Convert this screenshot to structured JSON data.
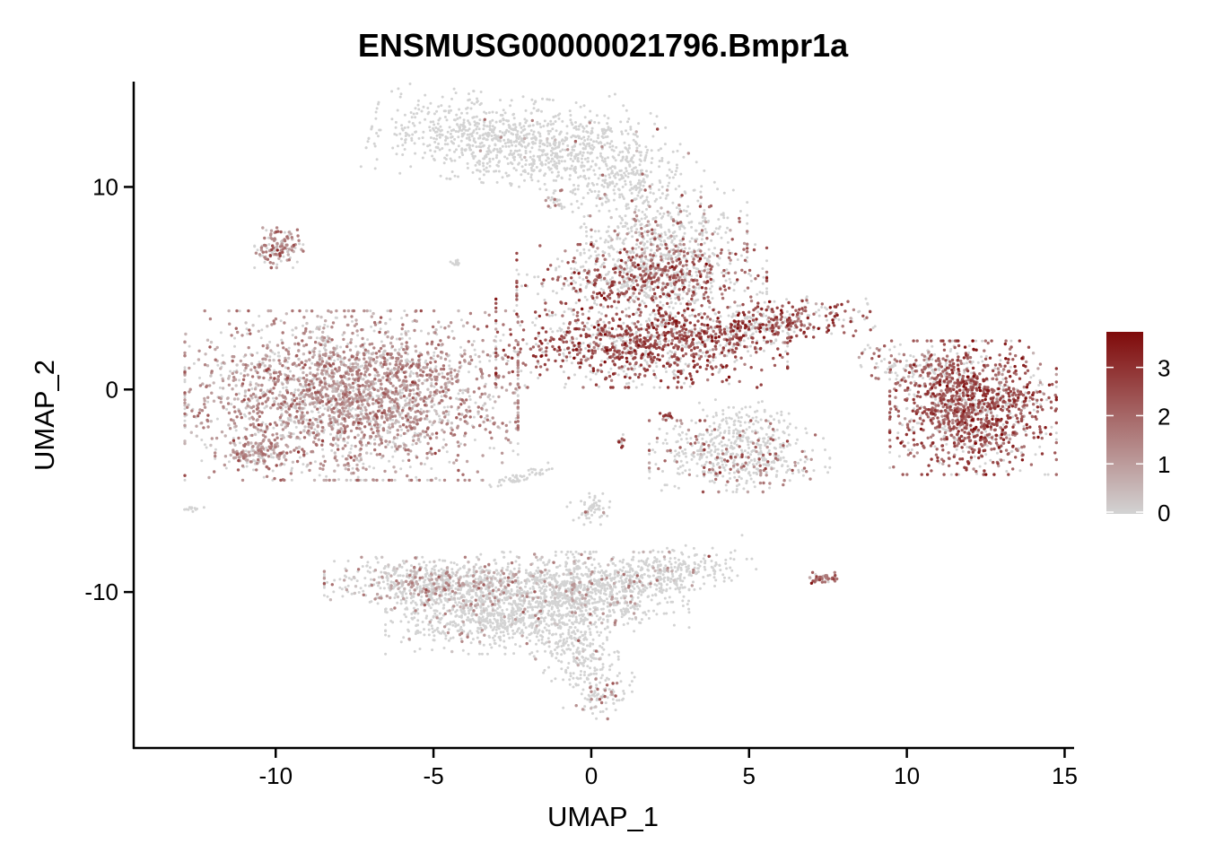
{
  "chart_data": {
    "type": "scatter",
    "title": "ENSMUSG00000021796.Bmpr1a",
    "xlabel": "UMAP_1",
    "ylabel": "UMAP_2",
    "xlim": [
      -14.5,
      15.3
    ],
    "ylim": [
      -17.7,
      15.2
    ],
    "x_ticks": [
      -10,
      -5,
      0,
      5,
      10,
      15
    ],
    "x_tick_labels": [
      "-10",
      "-5",
      "0",
      "5",
      "10",
      "15"
    ],
    "y_ticks": [
      -10,
      0,
      10
    ],
    "y_tick_labels": [
      "-10",
      "0",
      "10"
    ],
    "grid": false,
    "legend": {
      "placement": "right",
      "type": "colorbar",
      "range": [
        0,
        3.7
      ],
      "ticks": [
        0,
        1,
        2,
        3
      ],
      "tick_labels": [
        "0",
        "1",
        "2",
        "3"
      ],
      "low_color": "#d3d3d3",
      "high_color": "#7f0a0a"
    },
    "clusters": [
      {
        "cx": -2.6,
        "cy": 12.3,
        "sx": 2.0,
        "sy": 1.0,
        "rot": -10,
        "n": 900,
        "expr_frac": 0.02,
        "expr_mean": 1.0
      },
      {
        "cx": 0.9,
        "cy": 10.6,
        "sx": 1.1,
        "sy": 1.6,
        "rot": 30,
        "n": 400,
        "expr_frac": 0.05,
        "expr_mean": 1.2
      },
      {
        "cx": 2.3,
        "cy": 7.2,
        "sx": 1.2,
        "sy": 1.2,
        "rot": 0,
        "n": 500,
        "expr_frac": 0.25,
        "expr_mean": 1.6
      },
      {
        "cx": 1.6,
        "cy": 5.4,
        "sx": 1.8,
        "sy": 0.8,
        "rot": 0,
        "n": 650,
        "expr_frac": 0.5,
        "expr_mean": 2.2
      },
      {
        "cx": 1.6,
        "cy": 2.3,
        "sx": 2.1,
        "sy": 1.0,
        "rot": 0,
        "n": 1100,
        "expr_frac": 0.6,
        "expr_mean": 2.4
      },
      {
        "cx": 5.6,
        "cy": 3.2,
        "sx": 1.5,
        "sy": 0.5,
        "rot": 12,
        "n": 380,
        "expr_frac": 0.55,
        "expr_mean": 2.5
      },
      {
        "cx": 4.8,
        "cy": -1.6,
        "sx": 0.7,
        "sy": 0.5,
        "rot": 0,
        "n": 90,
        "expr_frac": 0.03,
        "expr_mean": 1.0
      },
      {
        "cx": 4.7,
        "cy": -3.3,
        "sx": 1.3,
        "sy": 0.8,
        "rot": 0,
        "n": 500,
        "expr_frac": 0.25,
        "expr_mean": 1.8
      },
      {
        "cx": 12.1,
        "cy": -0.9,
        "sx": 1.2,
        "sy": 1.5,
        "rot": 0,
        "n": 1300,
        "expr_frac": 0.75,
        "expr_mean": 2.3
      },
      {
        "cx": 10.4,
        "cy": 1.0,
        "sx": 0.9,
        "sy": 0.5,
        "rot": -25,
        "n": 150,
        "expr_frac": 0.3,
        "expr_mean": 1.8
      },
      {
        "cx": -7.6,
        "cy": -0.3,
        "sx": 2.4,
        "sy": 1.9,
        "rot": 0,
        "n": 2600,
        "expr_frac": 0.72,
        "expr_mean": 1.1
      },
      {
        "cx": -10.6,
        "cy": -3.2,
        "sx": 0.6,
        "sy": 0.35,
        "rot": 0,
        "n": 150,
        "expr_frac": 0.7,
        "expr_mean": 1.2
      },
      {
        "cx": -9.9,
        "cy": 7.0,
        "sx": 0.35,
        "sy": 0.45,
        "rot": 0,
        "n": 130,
        "expr_frac": 0.65,
        "expr_mean": 1.6
      },
      {
        "cx": -4.5,
        "cy": -9.6,
        "sx": 1.8,
        "sy": 0.6,
        "rot": 0,
        "n": 800,
        "expr_frac": 0.3,
        "expr_mean": 0.9
      },
      {
        "cx": -3.0,
        "cy": -11.3,
        "sx": 1.6,
        "sy": 0.8,
        "rot": 0,
        "n": 700,
        "expr_frac": 0.08,
        "expr_mean": 0.9
      },
      {
        "cx": -0.2,
        "cy": -10.0,
        "sx": 1.5,
        "sy": 0.9,
        "rot": 0,
        "n": 800,
        "expr_frac": 0.12,
        "expr_mean": 0.9
      },
      {
        "cx": 2.3,
        "cy": -9.0,
        "sx": 1.3,
        "sy": 0.5,
        "rot": 15,
        "n": 300,
        "expr_frac": 0.05,
        "expr_mean": 1.0
      },
      {
        "cx": -0.4,
        "cy": -13.2,
        "sx": 0.6,
        "sy": 1.0,
        "rot": 20,
        "n": 220,
        "expr_frac": 0.05,
        "expr_mean": 0.8
      },
      {
        "cx": 0.3,
        "cy": -15.1,
        "sx": 0.35,
        "sy": 0.5,
        "rot": -30,
        "n": 80,
        "expr_frac": 0.25,
        "expr_mean": 1.2
      },
      {
        "cx": 0.0,
        "cy": -5.9,
        "sx": 0.35,
        "sy": 0.35,
        "rot": 0,
        "n": 60,
        "expr_frac": 0.02,
        "expr_mean": 0.8
      },
      {
        "cx": -2.2,
        "cy": -4.3,
        "sx": 0.5,
        "sy": 0.12,
        "rot": 25,
        "n": 50,
        "expr_frac": 0.0,
        "expr_mean": 0.5
      },
      {
        "cx": 7.3,
        "cy": -9.3,
        "sx": 0.22,
        "sy": 0.12,
        "rot": 0,
        "n": 40,
        "expr_frac": 0.8,
        "expr_mean": 1.8
      },
      {
        "cx": -1.2,
        "cy": 9.4,
        "sx": 0.12,
        "sy": 0.2,
        "rot": 0,
        "n": 20,
        "expr_frac": 0.5,
        "expr_mean": 1.4
      },
      {
        "cx": 0.9,
        "cy": -2.6,
        "sx": 0.07,
        "sy": 0.18,
        "rot": 0,
        "n": 12,
        "expr_frac": 0.9,
        "expr_mean": 2.5
      },
      {
        "cx": 2.4,
        "cy": -1.4,
        "sx": 0.1,
        "sy": 0.12,
        "rot": 0,
        "n": 12,
        "expr_frac": 0.9,
        "expr_mean": 2.2
      },
      {
        "cx": -4.3,
        "cy": 6.3,
        "sx": 0.12,
        "sy": 0.1,
        "rot": 0,
        "n": 15,
        "expr_frac": 0.0,
        "expr_mean": 0.5
      },
      {
        "cx": -12.6,
        "cy": -5.9,
        "sx": 0.15,
        "sy": 0.06,
        "rot": 0,
        "n": 12,
        "expr_frac": 0.0,
        "expr_mean": 0.5
      }
    ]
  }
}
